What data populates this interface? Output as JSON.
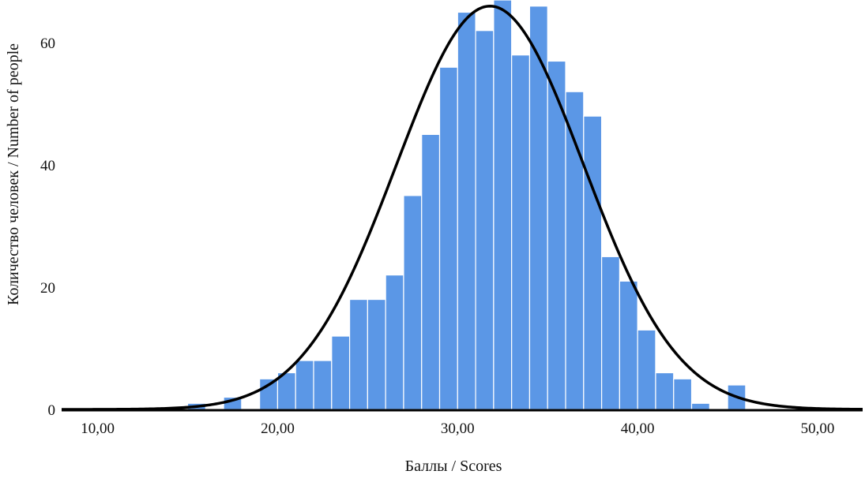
{
  "chart_data": {
    "type": "bar",
    "xlabel": "Баллы / Scores",
    "ylabel": "Количество человек / Number of people",
    "xlim": [
      8,
      52.5
    ],
    "ylim": [
      0,
      67
    ],
    "x_ticks": [
      10,
      20,
      30,
      40,
      50
    ],
    "x_tick_labels": [
      "10,00",
      "20,00",
      "30,00",
      "40,00",
      "50,00"
    ],
    "y_ticks": [
      0,
      20,
      40,
      60
    ],
    "y_tick_labels": [
      "0",
      "20",
      "40",
      "60"
    ],
    "grid": false,
    "bin_width": 1,
    "bins": [
      {
        "start": 15,
        "count": 1
      },
      {
        "start": 16,
        "count": 0
      },
      {
        "start": 17,
        "count": 2
      },
      {
        "start": 18,
        "count": 0
      },
      {
        "start": 19,
        "count": 5
      },
      {
        "start": 20,
        "count": 6
      },
      {
        "start": 21,
        "count": 8
      },
      {
        "start": 22,
        "count": 8
      },
      {
        "start": 23,
        "count": 12
      },
      {
        "start": 24,
        "count": 18
      },
      {
        "start": 25,
        "count": 18
      },
      {
        "start": 26,
        "count": 22
      },
      {
        "start": 27,
        "count": 35
      },
      {
        "start": 28,
        "count": 45
      },
      {
        "start": 29,
        "count": 56
      },
      {
        "start": 30,
        "count": 65
      },
      {
        "start": 31,
        "count": 62
      },
      {
        "start": 32,
        "count": 67
      },
      {
        "start": 33,
        "count": 58
      },
      {
        "start": 34,
        "count": 66
      },
      {
        "start": 35,
        "count": 57
      },
      {
        "start": 36,
        "count": 52
      },
      {
        "start": 37,
        "count": 48
      },
      {
        "start": 38,
        "count": 25
      },
      {
        "start": 39,
        "count": 21
      },
      {
        "start": 40,
        "count": 13
      },
      {
        "start": 41,
        "count": 6
      },
      {
        "start": 42,
        "count": 5
      },
      {
        "start": 43,
        "count": 1
      },
      {
        "start": 44,
        "count": 0
      },
      {
        "start": 45,
        "count": 4
      }
    ],
    "normal_curve": {
      "mean": 31.8,
      "sd": 5.2,
      "peak": 66
    },
    "colors": {
      "bar_fill": "#5b97e6",
      "bar_stroke": "#ffffff",
      "curve": "#000000",
      "axis": "#000000"
    }
  }
}
